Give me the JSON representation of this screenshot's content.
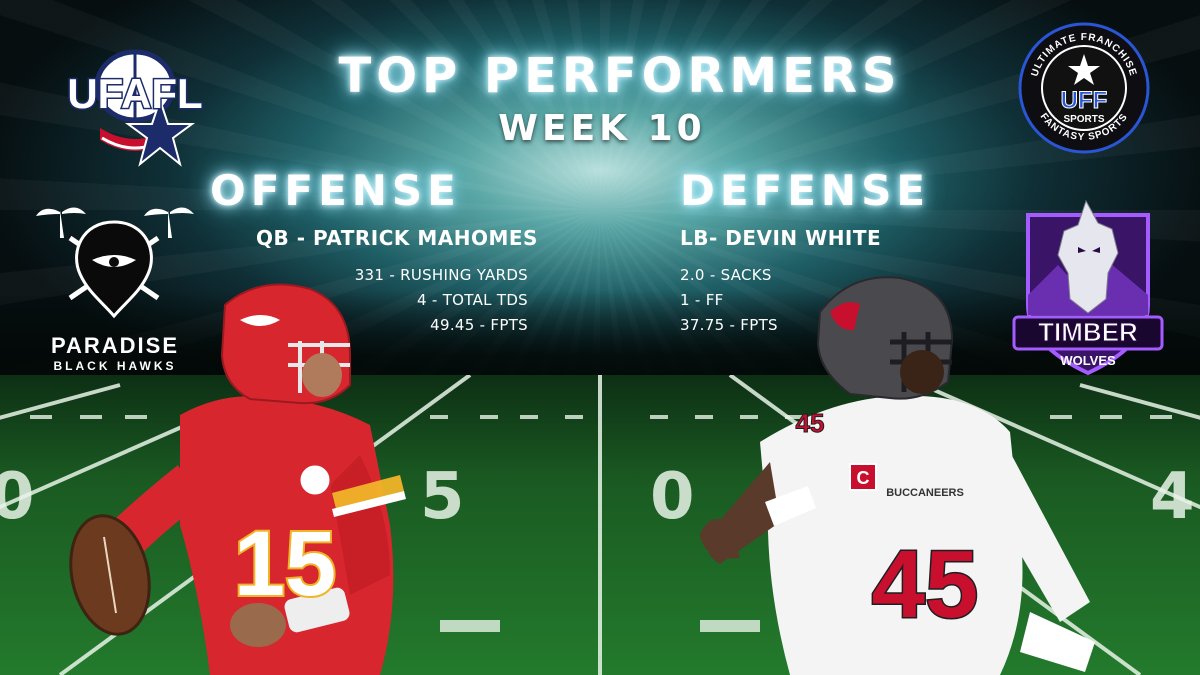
{
  "header": {
    "title": "TOP PERFORMERS",
    "week": "WEEK 10"
  },
  "offense": {
    "heading": "OFFENSE",
    "player": "QB - PATRICK MAHOMES",
    "stats": [
      "331 - RUSHING YARDS",
      "4 - TOTAL TDS",
      "49.45 - FPTS"
    ],
    "jersey_number": "15",
    "team_colors": {
      "primary": "#d8262e",
      "secondary": "#f0b429"
    }
  },
  "defense": {
    "heading": "DEFENSE",
    "player": "LB- DEVIN WHITE",
    "stats": [
      "2.0 - SACKS",
      "1 - FF",
      "37.75 - FPTS"
    ],
    "jersey_number": "45",
    "team_word": "BUCCANEERS",
    "captain_patch": "C",
    "team_colors": {
      "primary": "#f4f4f4",
      "secondary": "#c8102e"
    }
  },
  "logos": {
    "ufafl": "UFAFL",
    "uff_ring_top": "ULTIMATE FRANCHISE",
    "uff_ring_bottom": "FANTASY SPORTS",
    "uff_center": "UFF",
    "uff_sub": "SPORTS",
    "paradise_line1": "PARADISE",
    "paradise_line2": "BLACK HAWKS",
    "timber_line1": "TIMBER",
    "timber_line2": "WOLVES"
  },
  "field": {
    "yard_marker": "50"
  },
  "colors": {
    "glow": "#9fe6f5",
    "field_green": "#237a2c",
    "sky_teal": "#1f5f66"
  }
}
